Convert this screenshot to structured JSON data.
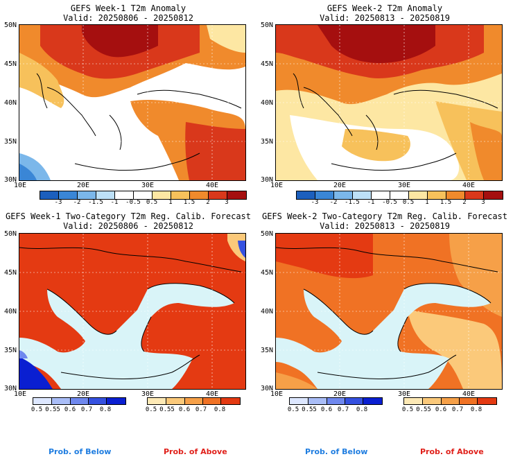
{
  "panels": [
    {
      "title_line1": "GEFS Week-1 T2m Anomaly",
      "title_line2": "Valid: 20250806 - 20250812",
      "lat_labels": [
        "50N",
        "45N",
        "40N",
        "35N",
        "30N"
      ],
      "lon_labels": [
        "10E",
        "20E",
        "30E",
        "40E"
      ],
      "colorbar_labels": [
        "-3",
        "-2",
        "-1.5",
        "-1",
        "-0.5",
        "0.5",
        "1",
        "1.5",
        "2",
        "3"
      ]
    },
    {
      "title_line1": "GEFS Week-2 T2m Anomaly",
      "title_line2": "Valid: 20250813 - 20250819",
      "lat_labels": [
        "50N",
        "45N",
        "40N",
        "35N",
        "30N"
      ],
      "lon_labels": [
        "10E",
        "20E",
        "30E",
        "40E"
      ],
      "colorbar_labels": [
        "-3",
        "-2",
        "-1.5",
        "-1",
        "-0.5",
        "0.5",
        "1",
        "1.5",
        "2",
        "3"
      ]
    },
    {
      "title_line1": "GEFS Week-1 Two-Category T2m Reg. Calib. Forecast",
      "title_line2": "Valid: 20250806 - 20250812",
      "lat_labels": [
        "50N",
        "45N",
        "40N",
        "35N",
        "30N"
      ],
      "lon_labels": [
        "10E",
        "20E",
        "30E",
        "40E"
      ],
      "below_labels": [
        "0.5",
        "0.55",
        "0.6",
        "0.7",
        "0.8"
      ],
      "above_labels": [
        "0.5",
        "0.55",
        "0.6",
        "0.7",
        "0.8"
      ],
      "prob_below": "Prob. of Below",
      "prob_above": "Prob. of Above"
    },
    {
      "title_line1": "GEFS Week-2 Two-Category T2m Reg. Calib. Forecast",
      "title_line2": "Valid: 20250813 - 20250819",
      "lat_labels": [
        "50N",
        "45N",
        "40N",
        "35N",
        "30N"
      ],
      "lon_labels": [
        "10E",
        "20E",
        "30E",
        "40E"
      ],
      "below_labels": [
        "0.5",
        "0.55",
        "0.6",
        "0.7",
        "0.8"
      ],
      "above_labels": [
        "0.5",
        "0.55",
        "0.6",
        "0.7",
        "0.8"
      ],
      "prob_below": "Prob. of Below",
      "prob_above": "Prob. of Above"
    }
  ],
  "colors": {
    "anom_scale": [
      "#1c5fbd",
      "#3a86d6",
      "#7bb7ea",
      "#bde0f7",
      "#ffffff",
      "#ffffff",
      "#fde7a3",
      "#f7c15b",
      "#f08a2c",
      "#d9381b",
      "#a50f0f"
    ],
    "below_scale": [
      "#dde7ff",
      "#a9bdf7",
      "#6f88ee",
      "#3551e0",
      "#0a1fd1"
    ],
    "above_scale": [
      "#fde9b5",
      "#fbc97a",
      "#f6a048",
      "#f07224",
      "#e43a12"
    ],
    "sea": "#d9f4f8",
    "prob_below": "#1f7de0",
    "prob_above": "#e0201a"
  }
}
